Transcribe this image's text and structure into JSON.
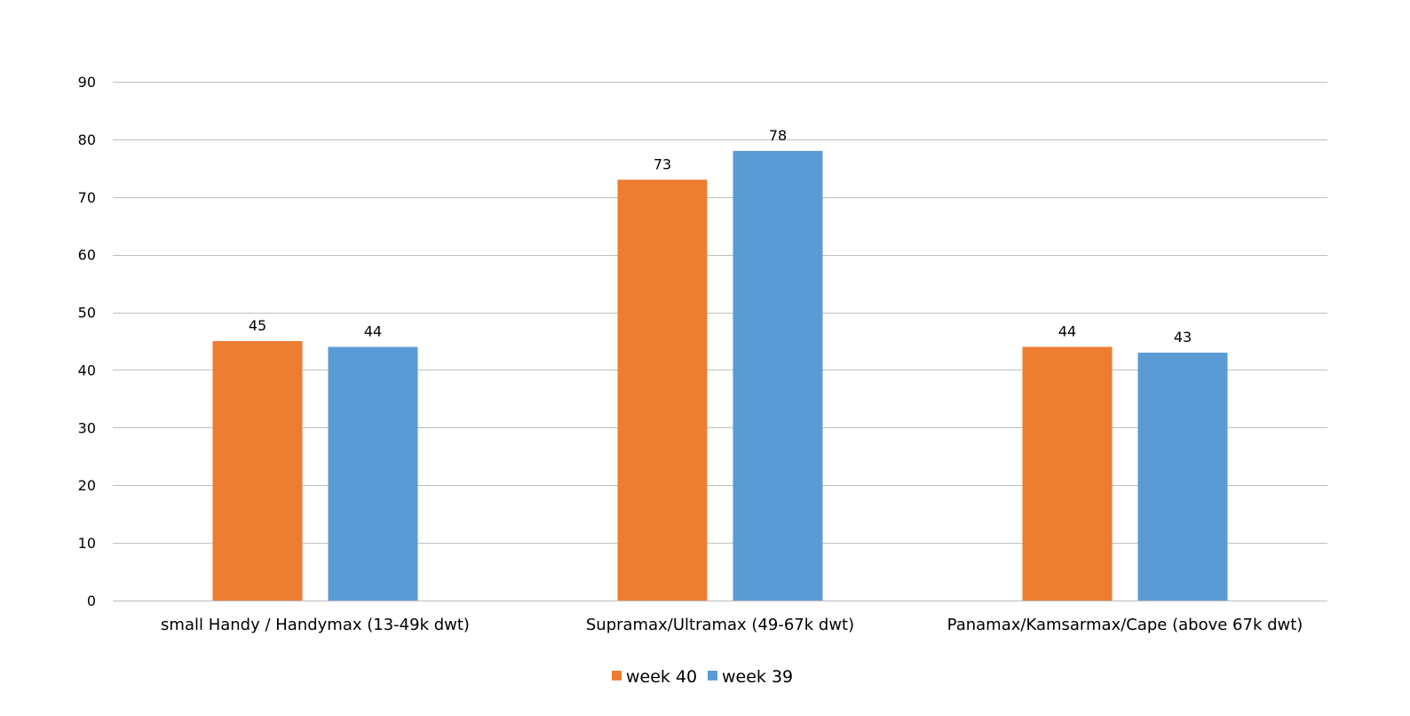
{
  "chart_data": {
    "type": "bar",
    "categories": [
      "small Handy / Handymax (13-49k dwt)",
      "Supramax/Ultramax (49-67k dwt)",
      "Panamax/Kamsarmax/Cape (above 67k dwt)"
    ],
    "series": [
      {
        "name": "week 40",
        "color": "#ed7d31",
        "values": [
          45,
          73,
          44
        ]
      },
      {
        "name": "week 39",
        "color": "#5b9bd5",
        "values": [
          44,
          78,
          43
        ]
      }
    ],
    "data_labels": [
      [
        "45",
        "73",
        "44"
      ],
      [
        "44",
        "78",
        "43"
      ]
    ],
    "yticks": [
      0,
      10,
      20,
      30,
      40,
      50,
      60,
      70,
      80,
      90
    ],
    "ylim": [
      0,
      90
    ],
    "grid": true,
    "legend_position": "bottom"
  }
}
